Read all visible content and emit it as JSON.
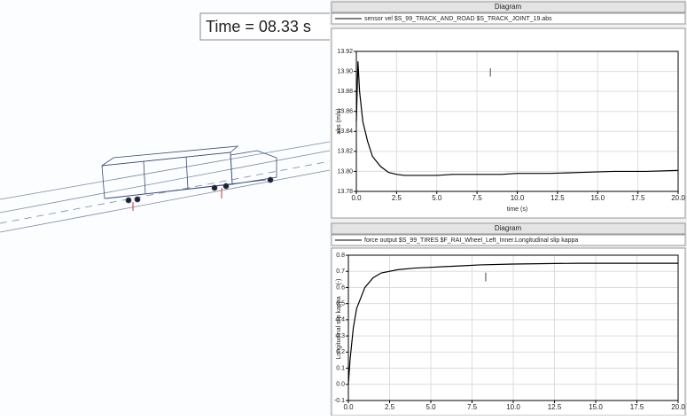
{
  "time_label": "Time = 08.33 s",
  "chart_data": [
    {
      "type": "line",
      "title": "Diagram",
      "legend": "sensor vel $S_99_TRACK_AND_ROAD $S_TRACK_JOINT_19.abs",
      "x_label": "time (s)",
      "y_label": "abs (m/s)",
      "x": [
        0,
        0.1,
        0.2,
        0.4,
        0.7,
        1,
        1.5,
        2,
        2.5,
        3,
        4,
        5,
        6,
        7,
        8,
        9,
        10,
        12,
        14,
        16,
        18,
        20
      ],
      "values": [
        13.85,
        13.91,
        13.88,
        13.85,
        13.83,
        13.815,
        13.805,
        13.799,
        13.797,
        13.796,
        13.796,
        13.796,
        13.797,
        13.797,
        13.797,
        13.797,
        13.798,
        13.798,
        13.799,
        13.8,
        13.8,
        13.801
      ],
      "color": "#000000",
      "cursor_x": 8.33,
      "xlim": [
        0,
        20
      ],
      "xticks": [
        {
          "value": 0,
          "label": "0.0"
        },
        2.5,
        {
          "value": 5,
          "label": "5.0"
        },
        7.5,
        {
          "value": 10,
          "label": "10.0"
        },
        12.5,
        {
          "value": 15,
          "label": "15.0"
        },
        17.5,
        {
          "value": 20,
          "label": "20.0"
        }
      ],
      "ylim": [
        13.78,
        13.92
      ],
      "yticks": [
        13.78,
        {
          "value": 13.8,
          "label": "13.80"
        },
        13.82,
        13.84,
        13.86,
        13.88,
        {
          "value": 13.9,
          "label": "13.90"
        },
        13.92
      ],
      "grid": true
    },
    {
      "type": "line",
      "title": "Diagram",
      "legend": "force output $S_99_TIRES $F_RAI_Wheel_Left_Inner.Longitudinal slip kappa",
      "y_label": "Longitudinal slip kappa",
      "y_unit": "(-)",
      "x": [
        0,
        0.1,
        0.3,
        0.5,
        1,
        1.5,
        2,
        3,
        4,
        5,
        6,
        7,
        8,
        10,
        12,
        14,
        16,
        18,
        20
      ],
      "values": [
        0,
        0.15,
        0.35,
        0.47,
        0.6,
        0.66,
        0.69,
        0.71,
        0.72,
        0.725,
        0.73,
        0.735,
        0.74,
        0.745,
        0.748,
        0.75,
        0.75,
        0.75,
        0.75
      ],
      "color": "#000000",
      "cursor_x": 8.33,
      "xlim": [
        0,
        20
      ],
      "xticks": [
        {
          "value": 0,
          "label": "0.0"
        },
        2.5,
        {
          "value": 5,
          "label": "5.0"
        },
        7.5,
        {
          "value": 10,
          "label": "10.0"
        },
        12.5,
        {
          "value": 15,
          "label": "15.0"
        },
        17.5,
        {
          "value": 20,
          "label": "20.0"
        }
      ],
      "ylim": [
        -0.1,
        0.8
      ],
      "yticks": [
        -0.1,
        {
          "value": 0,
          "label": "0.0"
        },
        0.1,
        0.2,
        0.3,
        0.4,
        0.5,
        0.6,
        0.7,
        0.8
      ],
      "grid": true
    }
  ]
}
